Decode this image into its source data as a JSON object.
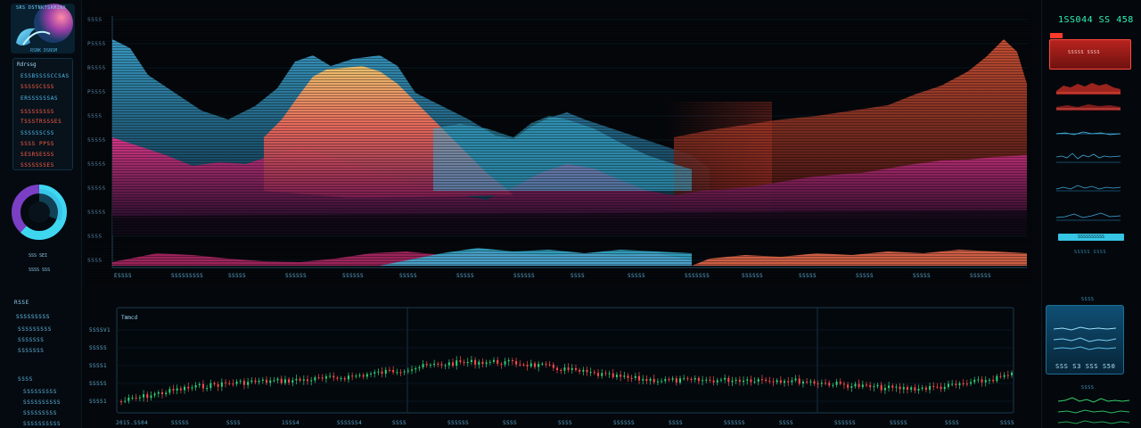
{
  "left_panel": {
    "logo_title": "SRS DSTNKTSRMINX",
    "logo_sub": "RSNK DSNSM",
    "header": "Rdrssg",
    "stats": [
      {
        "text": "ESSBSSSSCCSAS",
        "color": "blue"
      },
      {
        "text": "SSSSSCSSS",
        "color": "red"
      },
      {
        "text": "ERSSSSSSAS",
        "color": "blue"
      },
      {
        "text": "SSSSSSSSS",
        "color": "red"
      },
      {
        "text": "TSSSTRSSSES",
        "color": "red"
      },
      {
        "text": "SSSSSSCSS",
        "color": "blue"
      },
      {
        "text": "SSSS PPSS",
        "color": "red"
      },
      {
        "text": "SESRSESSS",
        "color": "red"
      },
      {
        "text": "SSSSSSSES",
        "color": "red"
      },
      {
        "text": "SSSSSSSS",
        "color": "red"
      }
    ],
    "donut_label_1": "SSS SEI",
    "donut_label_2": "SSSS SSS",
    "donut_values": [
      0.62,
      0.38
    ],
    "lower_header": "RSSE",
    "lower_stats": [
      "SSSSSSSSS",
      "SSSSSSSSS",
      "SSSSSSS",
      "SSSSSSS"
    ],
    "bottom_stats": [
      "SSSS",
      "SSSSSSSSS",
      "SSSSSSSSSS",
      "SSSSSSSSS",
      "SSSSSSSSSS"
    ]
  },
  "main_chart": {
    "y_ticks": [
      "SSSS",
      "PSSSS",
      "BSSSS",
      "PSSSS",
      "SSSS",
      "SSSSS",
      "SSSSS",
      "SSSSS",
      "SSSSS",
      "SSSS",
      "SSSS"
    ],
    "x_ticks": [
      "ESSSS",
      "SSSSSSSSS",
      "SSSSS",
      "SSSSSS",
      "SSSSSS",
      "SSSSS",
      "SSSSS",
      "SSSSSS",
      "SSSS",
      "SSSSS",
      "SSSSSSS",
      "SSSSSS",
      "SSSSS",
      "SSSSS",
      "SSSSS",
      "SSSSSS"
    ],
    "colors": {
      "blue": "#2b88b8",
      "teal": "#3bb4d8",
      "magenta": "#d9307a",
      "orange": "#f0763a",
      "red": "#c83a2a"
    }
  },
  "candle_chart": {
    "title": "Tmmcd",
    "y_ticks": [
      "5SSSV1",
      "SSSSS",
      "SSSS1",
      "SSSSS",
      "SSSS1"
    ],
    "x_ticks": [
      "2015.SS04",
      "SSSSS",
      "SSSS",
      "1SSS4",
      "SSSSSS4",
      "SSSS",
      "SSSSSS",
      "SSSS",
      "SSSS",
      "SSSSSS",
      "SSSS",
      "SSSSSS",
      "SSSS",
      "SSSSSS",
      "SSSSS",
      "SSSS",
      "SSSS"
    ],
    "up_color": "#2fd07a",
    "down_color": "#ff4a4a"
  },
  "right_panel": {
    "readout": "1SS044 SS 458",
    "alert_text": "SSSSS SSSS",
    "cyan_bar_text": "SSSSSSSSSS",
    "cyan_sub": "SSSSS SSSS",
    "card_title": "SSSS",
    "card_value": "SSS S3    SSS S50",
    "bottom_title": "SSSS"
  }
}
